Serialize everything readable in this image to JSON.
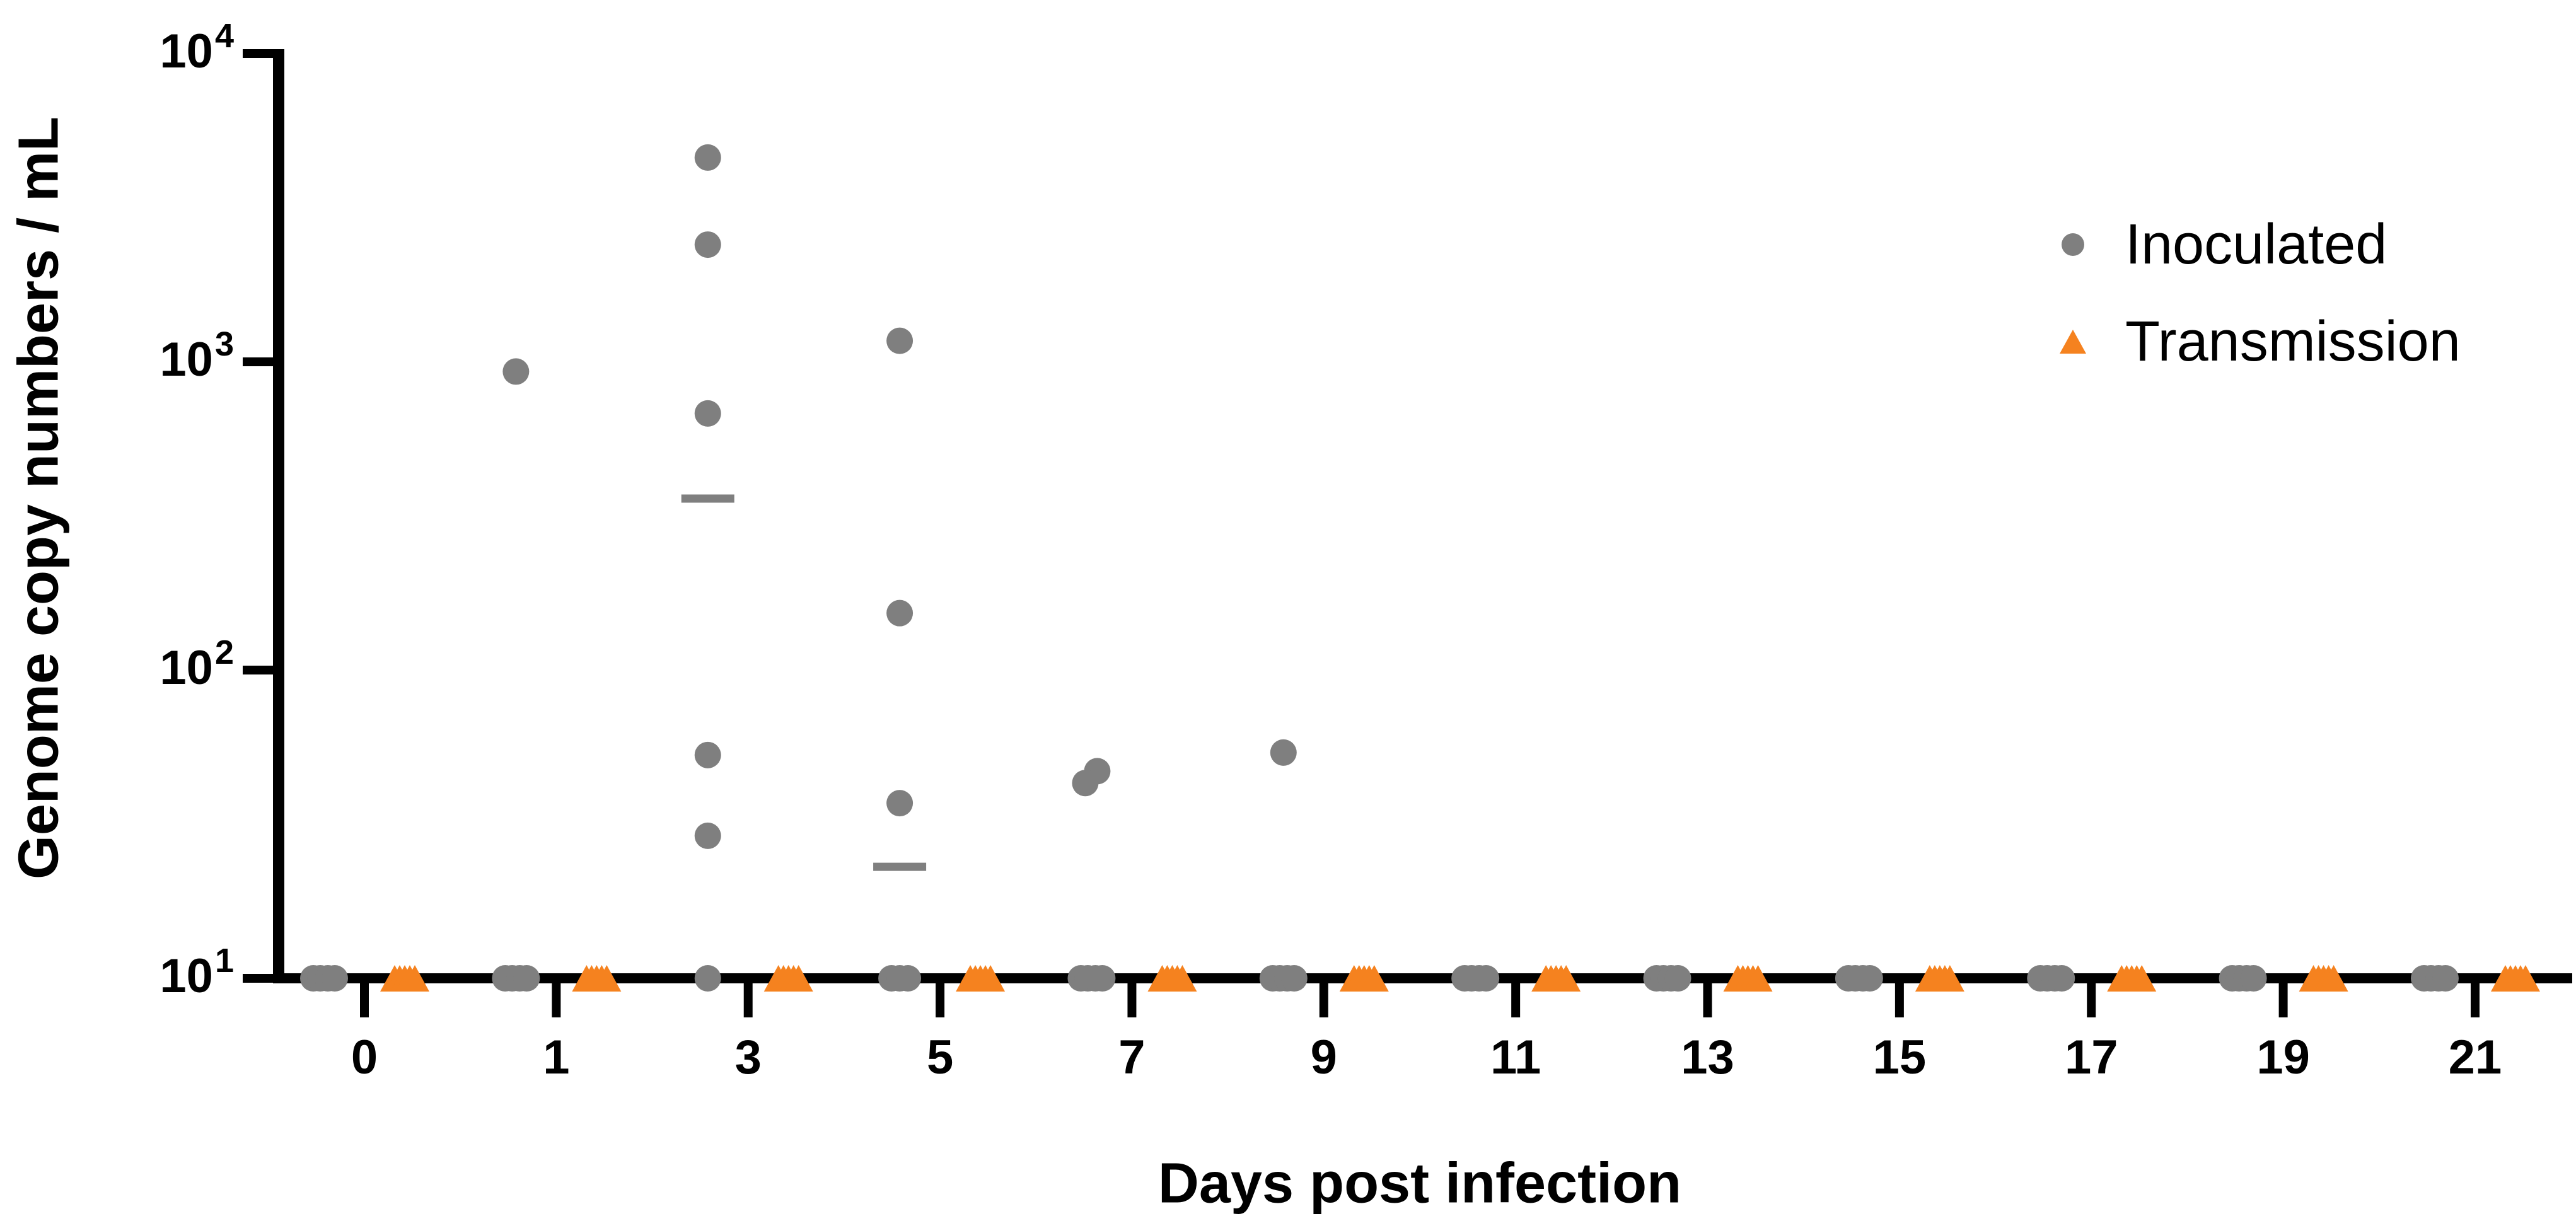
{
  "figure": {
    "x_axis_title": "Days post infection",
    "y_axis_title": "Genome copy numbers / mL",
    "legend": {
      "items": [
        {
          "label": "Inoculated",
          "marker": "circle-icon",
          "color": "#7F7F7F"
        },
        {
          "label": "Transmission",
          "marker": "triangle-icon",
          "color": "#F5821F"
        }
      ]
    }
  },
  "chart_data": {
    "type": "scatter",
    "title": "",
    "xlabel": "Days post infection",
    "ylabel": "Genome copy numbers / mL",
    "x_scale": "categorical",
    "y_scale": "log10",
    "ylim": [
      10,
      10000
    ],
    "grid": false,
    "legend_position": "upper-right",
    "limit_of_detection": 10,
    "categories": [
      "0",
      "1",
      "3",
      "5",
      "7",
      "9",
      "11",
      "13",
      "15",
      "17",
      "19",
      "21"
    ],
    "y_ticks": [
      {
        "base": "10",
        "exp": "1"
      },
      {
        "base": "10",
        "exp": "2"
      },
      {
        "base": "10",
        "exp": "3"
      },
      {
        "base": "10",
        "exp": "4"
      }
    ],
    "series": [
      {
        "name": "Inoculated",
        "marker": "circle",
        "color": "#7F7F7F",
        "points": [
          {
            "day": "1",
            "value": 930
          },
          {
            "day": "3",
            "value": 4600
          },
          {
            "day": "3",
            "value": 2400
          },
          {
            "day": "3",
            "value": 680
          },
          {
            "day": "3",
            "value": 53
          },
          {
            "day": "3",
            "value": 29
          },
          {
            "day": "5",
            "value": 1170
          },
          {
            "day": "5",
            "value": 153
          },
          {
            "day": "5",
            "value": 37
          },
          {
            "day": "7",
            "value": 47,
            "dx": 9
          },
          {
            "day": "7",
            "value": 43,
            "dx": -10
          },
          {
            "day": "9",
            "value": 54
          }
        ],
        "lod_cluster_sizes": [
          4,
          4,
          1,
          3,
          4,
          4,
          4,
          4,
          4,
          4,
          4,
          4
        ]
      },
      {
        "name": "Transmission",
        "marker": "triangle",
        "color": "#F5821F",
        "points": [],
        "lod_cluster_sizes": [
          5,
          5,
          5,
          5,
          5,
          5,
          5,
          5,
          5,
          5,
          5,
          5
        ]
      }
    ],
    "medians": [
      {
        "day": "3",
        "value": 360
      },
      {
        "day": "5",
        "value": 23
      }
    ]
  }
}
